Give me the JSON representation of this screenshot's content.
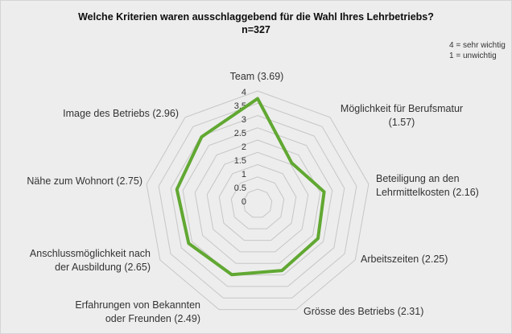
{
  "header": {
    "title": "Welche Kriterien waren ausschlaggebend für die Wahl Ihres Lehrbetriebs?",
    "subtitle": "n=327"
  },
  "legend": {
    "line1": "4 = sehr wichtig",
    "line2": "1 = unwichtig"
  },
  "colors": {
    "series": "#61a832",
    "grid": "#c6c6c6",
    "background": "#ededed",
    "text": "#333333"
  },
  "chart_data": {
    "type": "radar",
    "title": "Welche Kriterien waren ausschlaggebend für die Wahl Ihres Lehrbetriebs?",
    "n": 327,
    "categories": [
      "Team",
      "Möglichkeit für Berufsmatur",
      "Beteiligung an den Lehrmittelkosten",
      "Arbeitszeiten",
      "Grösse des Betriebs",
      "Erfahrungen von Bekannten oder Freunden",
      "Anschlussmöglichkeit nach der Ausbildung",
      "Nähe zum Wohnort",
      "Image des Betriebs"
    ],
    "values": [
      3.69,
      1.57,
      2.16,
      2.25,
      2.31,
      2.49,
      2.65,
      2.75,
      2.96
    ],
    "axis_labels": [
      [
        "Team (3.69)"
      ],
      [
        "Möglichkeit für Berufsmatur",
        "(1.57)"
      ],
      [
        "Beteiligung an den",
        "Lehrmittelkosten (2.16)"
      ],
      [
        "Arbeitszeiten (2.25)"
      ],
      [
        "Grösse des Betriebs (2.31)"
      ],
      [
        "Erfahrungen von Bekannten",
        "oder Freunden (2.49)"
      ],
      [
        "Anschlussmöglichkeit nach",
        "der Ausbildung (2.65)"
      ],
      [
        "Nähe zum Wohnort (2.75)"
      ],
      [
        "Image des Betriebs (2.96)"
      ]
    ],
    "axis": {
      "min": 0,
      "max": 4,
      "step": 0.5,
      "tick_labels": [
        "4",
        "3.5",
        "3",
        "2.5",
        "2",
        "1.5",
        "1",
        "0.5",
        "0"
      ]
    },
    "legend": [
      "4 = sehr wichtig",
      "1 = unwichtig"
    ],
    "grid": true,
    "legend_position": "top-right"
  }
}
